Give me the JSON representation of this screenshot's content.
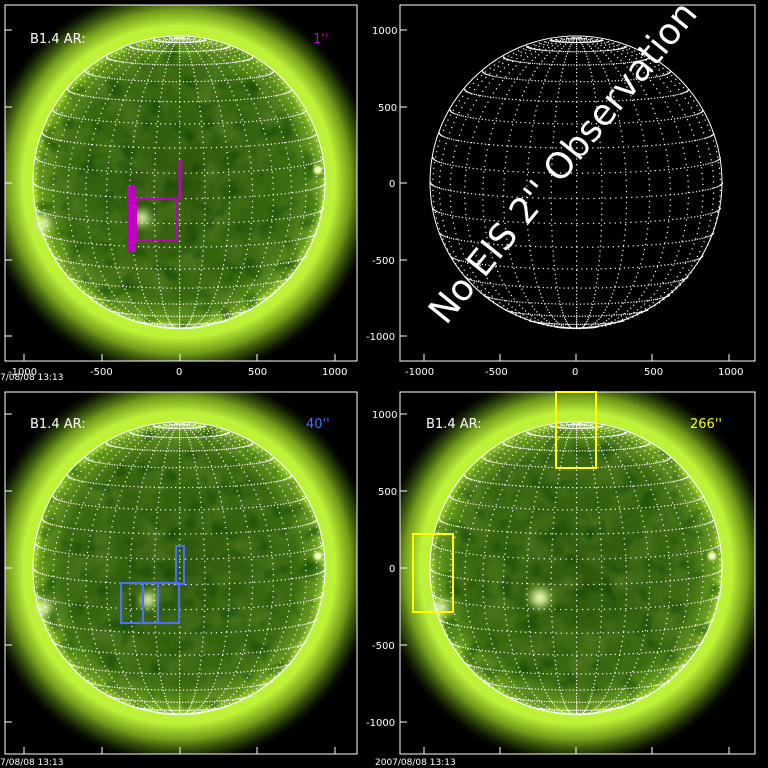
{
  "colors": {
    "frame": "#ffffff",
    "grid": "#ffffff",
    "disk_center": "#2f5a0c",
    "disk_edge": "#4f7f16",
    "corona": "#b8ff2a",
    "magenta": "#c000c0",
    "blue": "#4b6fff",
    "yellow": "#ffff00"
  },
  "top_left": {
    "label": "B1.4 AR:",
    "resolution": "1''",
    "timestamp": "7/08/08 13:13",
    "xticks": [
      "-1000",
      "-500",
      "0",
      "500",
      "1000"
    ]
  },
  "top_right": {
    "message": "No EIS 2'' Observation",
    "xticks": [
      "-1000",
      "-500",
      "0",
      "500",
      "1000"
    ],
    "yticks": [
      "1000",
      "500",
      "0",
      "-500",
      "-1000"
    ]
  },
  "bottom_left": {
    "label": "B1.4 AR:",
    "resolution": "40''",
    "timestamp": "7/08/08 13:13"
  },
  "bottom_right": {
    "label": "B1.4 AR:",
    "resolution": "266''",
    "timestamp": "2007/08/08 13:13",
    "yticks": [
      "1000",
      "500",
      "0",
      "-500",
      "-1000"
    ]
  }
}
